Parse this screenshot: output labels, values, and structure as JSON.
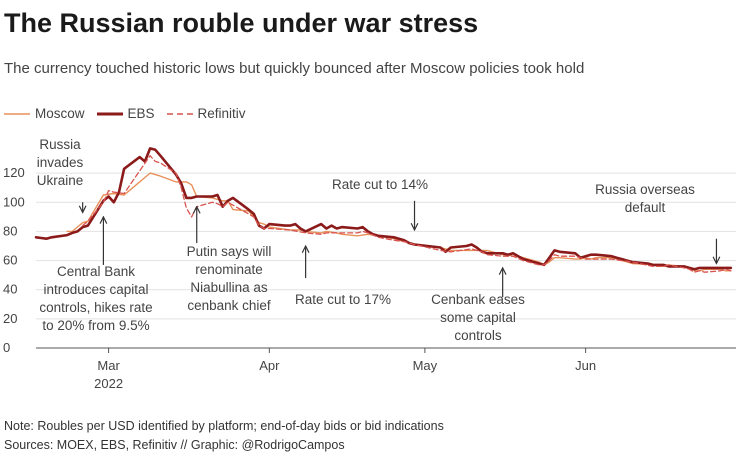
{
  "title": "The Russian rouble under war stress",
  "subtitle": "The currency touched historic lows but quickly bounced after Moscow policies took hold",
  "note": "Note: Roubles per USD identified by platform; end-of-day bids or bid indications",
  "sources": "Sources: MOEX, EBS, Refinitiv // Graphic: @RodrigoCampos",
  "colors": {
    "moscow": "#e8915a",
    "ebs": "#8b1a1a",
    "refinitiv": "#d9534f"
  },
  "chart_data": {
    "type": "line",
    "title": "The Russian rouble under war stress",
    "ylim": [
      0,
      140
    ],
    "yticks": [
      0,
      20,
      40,
      60,
      80,
      100,
      120
    ],
    "xlim": [
      "2022-02-15",
      "2022-06-30"
    ],
    "xticks": [
      {
        "date": "2022-03-01",
        "label": "Mar",
        "sublabel": "2022"
      },
      {
        "date": "2022-04-01",
        "label": "Apr",
        "sublabel": ""
      },
      {
        "date": "2022-05-01",
        "label": "May",
        "sublabel": ""
      },
      {
        "date": "2022-06-01",
        "label": "Jun",
        "sublabel": ""
      }
    ],
    "legend": "top-left",
    "series": [
      {
        "name": "Moscow",
        "style": "thin-solid",
        "points": [
          [
            "2022-02-21",
            80
          ],
          [
            "2022-02-22",
            80
          ],
          [
            "2022-02-24",
            86
          ],
          [
            "2022-02-25",
            87
          ],
          [
            "2022-02-28",
            105
          ],
          [
            "2022-03-02",
            106
          ],
          [
            "2022-03-04",
            105
          ],
          [
            "2022-03-09",
            120
          ],
          [
            "2022-03-10",
            119
          ],
          [
            "2022-03-11",
            118
          ],
          [
            "2022-03-14",
            114
          ],
          [
            "2022-03-16",
            114
          ],
          [
            "2022-03-17",
            112
          ],
          [
            "2022-03-18",
            104
          ],
          [
            "2022-03-21",
            103
          ],
          [
            "2022-03-22",
            102
          ],
          [
            "2022-03-23",
            101
          ],
          [
            "2022-03-24",
            101
          ],
          [
            "2022-03-25",
            95
          ],
          [
            "2022-03-28",
            94
          ],
          [
            "2022-03-29",
            90
          ],
          [
            "2022-03-30",
            86
          ],
          [
            "2022-03-31",
            85
          ],
          [
            "2022-04-01",
            83
          ],
          [
            "2022-04-05",
            81
          ],
          [
            "2022-04-07",
            81
          ],
          [
            "2022-04-08",
            80
          ],
          [
            "2022-04-11",
            79
          ],
          [
            "2022-04-12",
            80
          ],
          [
            "2022-04-14",
            79
          ],
          [
            "2022-04-15",
            78
          ],
          [
            "2022-04-18",
            77
          ],
          [
            "2022-04-20",
            78
          ],
          [
            "2022-04-22",
            77
          ],
          [
            "2022-04-25",
            75
          ],
          [
            "2022-04-27",
            73
          ],
          [
            "2022-04-29",
            71
          ],
          [
            "2022-05-04",
            69
          ],
          [
            "2022-05-06",
            67
          ],
          [
            "2022-05-10",
            67
          ],
          [
            "2022-05-12",
            67
          ],
          [
            "2022-05-13",
            67
          ],
          [
            "2022-05-16",
            64
          ],
          [
            "2022-05-17",
            64
          ],
          [
            "2022-05-18",
            63
          ],
          [
            "2022-05-19",
            63
          ],
          [
            "2022-05-20",
            62
          ],
          [
            "2022-05-23",
            59
          ],
          [
            "2022-05-24",
            57
          ],
          [
            "2022-05-25",
            59
          ],
          [
            "2022-05-26",
            62
          ],
          [
            "2022-05-27",
            62
          ],
          [
            "2022-05-30",
            61
          ],
          [
            "2022-05-31",
            61
          ],
          [
            "2022-06-01",
            62
          ],
          [
            "2022-06-02",
            61
          ],
          [
            "2022-06-03",
            62
          ],
          [
            "2022-06-06",
            62
          ],
          [
            "2022-06-07",
            61
          ],
          [
            "2022-06-08",
            60
          ],
          [
            "2022-06-09",
            59
          ],
          [
            "2022-06-10",
            58
          ],
          [
            "2022-06-14",
            57
          ],
          [
            "2022-06-15",
            57
          ],
          [
            "2022-06-16",
            56
          ],
          [
            "2022-06-17",
            57
          ],
          [
            "2022-06-20",
            56
          ],
          [
            "2022-06-21",
            55
          ],
          [
            "2022-06-22",
            53
          ],
          [
            "2022-06-23",
            53
          ],
          [
            "2022-06-24",
            54
          ],
          [
            "2022-06-27",
            54
          ],
          [
            "2022-06-28",
            53
          ],
          [
            "2022-06-29",
            53
          ]
        ]
      },
      {
        "name": "EBS",
        "style": "thick-solid",
        "points": [
          [
            "2022-02-15",
            76
          ],
          [
            "2022-02-16",
            75.5
          ],
          [
            "2022-02-17",
            75
          ],
          [
            "2022-02-18",
            76
          ],
          [
            "2022-02-21",
            77.5
          ],
          [
            "2022-02-22",
            79
          ],
          [
            "2022-02-23",
            80
          ],
          [
            "2022-02-24",
            83
          ],
          [
            "2022-02-25",
            84
          ],
          [
            "2022-02-28",
            101
          ],
          [
            "2022-03-01",
            104
          ],
          [
            "2022-03-02",
            100
          ],
          [
            "2022-03-03",
            107
          ],
          [
            "2022-03-04",
            123
          ],
          [
            "2022-03-07",
            131
          ],
          [
            "2022-03-08",
            128
          ],
          [
            "2022-03-09",
            137
          ],
          [
            "2022-03-10",
            136
          ],
          [
            "2022-03-11",
            132
          ],
          [
            "2022-03-14",
            119
          ],
          [
            "2022-03-15",
            113
          ],
          [
            "2022-03-16",
            103
          ],
          [
            "2022-03-17",
            103
          ],
          [
            "2022-03-18",
            104
          ],
          [
            "2022-03-21",
            104
          ],
          [
            "2022-03-22",
            105
          ],
          [
            "2022-03-23",
            97
          ],
          [
            "2022-03-24",
            101
          ],
          [
            "2022-03-25",
            103
          ],
          [
            "2022-03-28",
            95
          ],
          [
            "2022-03-29",
            92
          ],
          [
            "2022-03-30",
            84
          ],
          [
            "2022-03-31",
            82
          ],
          [
            "2022-04-01",
            85
          ],
          [
            "2022-04-04",
            84
          ],
          [
            "2022-04-05",
            84
          ],
          [
            "2022-04-06",
            85
          ],
          [
            "2022-04-07",
            82
          ],
          [
            "2022-04-08",
            80
          ],
          [
            "2022-04-11",
            85
          ],
          [
            "2022-04-12",
            82
          ],
          [
            "2022-04-13",
            84
          ],
          [
            "2022-04-14",
            82
          ],
          [
            "2022-04-15",
            83
          ],
          [
            "2022-04-18",
            82
          ],
          [
            "2022-04-19",
            83
          ],
          [
            "2022-04-20",
            80
          ],
          [
            "2022-04-21",
            78
          ],
          [
            "2022-04-22",
            77
          ],
          [
            "2022-04-25",
            76
          ],
          [
            "2022-04-26",
            75
          ],
          [
            "2022-04-27",
            74
          ],
          [
            "2022-04-28",
            72
          ],
          [
            "2022-04-29",
            71
          ],
          [
            "2022-05-04",
            69
          ],
          [
            "2022-05-05",
            66
          ],
          [
            "2022-05-06",
            69
          ],
          [
            "2022-05-09",
            70
          ],
          [
            "2022-05-10",
            71
          ],
          [
            "2022-05-11",
            69
          ],
          [
            "2022-05-12",
            66
          ],
          [
            "2022-05-13",
            65
          ],
          [
            "2022-05-16",
            65
          ],
          [
            "2022-05-17",
            64
          ],
          [
            "2022-05-18",
            65
          ],
          [
            "2022-05-19",
            63
          ],
          [
            "2022-05-20",
            61
          ],
          [
            "2022-05-23",
            58
          ],
          [
            "2022-05-24",
            57
          ],
          [
            "2022-05-25",
            62
          ],
          [
            "2022-05-26",
            67
          ],
          [
            "2022-05-27",
            66
          ],
          [
            "2022-05-30",
            65
          ],
          [
            "2022-05-31",
            62
          ],
          [
            "2022-06-01",
            63
          ],
          [
            "2022-06-02",
            64
          ],
          [
            "2022-06-03",
            64
          ],
          [
            "2022-06-06",
            63
          ],
          [
            "2022-06-07",
            62
          ],
          [
            "2022-06-08",
            61
          ],
          [
            "2022-06-09",
            60
          ],
          [
            "2022-06-10",
            59
          ],
          [
            "2022-06-13",
            58
          ],
          [
            "2022-06-14",
            57
          ],
          [
            "2022-06-15",
            57
          ],
          [
            "2022-06-16",
            57
          ],
          [
            "2022-06-17",
            56
          ],
          [
            "2022-06-20",
            56
          ],
          [
            "2022-06-21",
            55
          ],
          [
            "2022-06-22",
            54
          ],
          [
            "2022-06-23",
            55
          ],
          [
            "2022-06-24",
            55
          ],
          [
            "2022-06-27",
            55
          ],
          [
            "2022-06-28",
            55
          ],
          [
            "2022-06-29",
            55
          ]
        ]
      },
      {
        "name": "Refinitiv",
        "style": "dashed",
        "points": [
          [
            "2022-02-24",
            84
          ],
          [
            "2022-02-25",
            87
          ],
          [
            "2022-02-28",
            100
          ],
          [
            "2022-03-01",
            108
          ],
          [
            "2022-03-02",
            107
          ],
          [
            "2022-03-04",
            106
          ],
          [
            "2022-03-09",
            132
          ],
          [
            "2022-03-10",
            128
          ],
          [
            "2022-03-11",
            127
          ],
          [
            "2022-03-14",
            120
          ],
          [
            "2022-03-15",
            110
          ],
          [
            "2022-03-16",
            96
          ],
          [
            "2022-03-17",
            90
          ],
          [
            "2022-03-18",
            97
          ],
          [
            "2022-03-21",
            100
          ],
          [
            "2022-03-22",
            99
          ],
          [
            "2022-03-23",
            97
          ],
          [
            "2022-03-24",
            100
          ],
          [
            "2022-03-25",
            98
          ],
          [
            "2022-03-28",
            92
          ],
          [
            "2022-03-29",
            90
          ],
          [
            "2022-03-30",
            84
          ],
          [
            "2022-03-31",
            82
          ],
          [
            "2022-04-01",
            82
          ],
          [
            "2022-04-05",
            81
          ],
          [
            "2022-04-08",
            79
          ],
          [
            "2022-04-11",
            78
          ],
          [
            "2022-04-12",
            79
          ],
          [
            "2022-04-14",
            79
          ],
          [
            "2022-04-15",
            79
          ],
          [
            "2022-04-18",
            79
          ],
          [
            "2022-04-19",
            80
          ],
          [
            "2022-04-20",
            79
          ],
          [
            "2022-04-22",
            76
          ],
          [
            "2022-04-25",
            74
          ],
          [
            "2022-04-27",
            73
          ],
          [
            "2022-04-29",
            71
          ],
          [
            "2022-05-04",
            67
          ],
          [
            "2022-05-06",
            66
          ],
          [
            "2022-05-10",
            68
          ],
          [
            "2022-05-12",
            66
          ],
          [
            "2022-05-13",
            64
          ],
          [
            "2022-05-16",
            63
          ],
          [
            "2022-05-18",
            63
          ],
          [
            "2022-05-20",
            60
          ],
          [
            "2022-05-23",
            57
          ],
          [
            "2022-05-24",
            57
          ],
          [
            "2022-05-25",
            60
          ],
          [
            "2022-05-26",
            64
          ],
          [
            "2022-05-27",
            63
          ],
          [
            "2022-05-30",
            63
          ],
          [
            "2022-05-31",
            62
          ],
          [
            "2022-06-01",
            61
          ],
          [
            "2022-06-03",
            61
          ],
          [
            "2022-06-06",
            61
          ],
          [
            "2022-06-08",
            60
          ],
          [
            "2022-06-10",
            59
          ],
          [
            "2022-06-14",
            56
          ],
          [
            "2022-06-16",
            56
          ],
          [
            "2022-06-17",
            57
          ],
          [
            "2022-06-20",
            55
          ],
          [
            "2022-06-21",
            54
          ],
          [
            "2022-06-22",
            52
          ],
          [
            "2022-06-23",
            53
          ],
          [
            "2022-06-24",
            52
          ],
          [
            "2022-06-27",
            53
          ],
          [
            "2022-06-28",
            54
          ],
          [
            "2022-06-29",
            53
          ]
        ]
      }
    ],
    "annotations": [
      {
        "lines": [
          "Russia",
          "invades",
          "Ukraine"
        ],
        "arrow_date": "2022-02-24",
        "arrow_dir": "down",
        "arrow_from": 100,
        "arrow_to": 93
      },
      {
        "lines": [
          "Central Bank",
          "introduces capital",
          "controls, hikes rate",
          "to 20% from 9.5%"
        ],
        "arrow_date": "2022-02-28",
        "arrow_dir": "up",
        "arrow_from": 57,
        "arrow_to": 90
      },
      {
        "lines": [
          "Putin says will",
          "renominate",
          "Niabullina as",
          "cenbank chief"
        ],
        "arrow_date": "2022-03-18",
        "arrow_dir": "up",
        "arrow_from": 72,
        "arrow_to": 97
      },
      {
        "lines": [
          "Rate cut to 17%"
        ],
        "arrow_date": "2022-04-08",
        "arrow_dir": "up",
        "arrow_from": 48,
        "arrow_to": 70
      },
      {
        "lines": [
          "Rate cut to 14%"
        ],
        "arrow_date": "2022-04-29",
        "arrow_dir": "down",
        "arrow_from": 101,
        "arrow_to": 81
      },
      {
        "lines": [
          "Cenbank eases",
          "some capital",
          "controls"
        ],
        "arrow_date": "2022-05-16",
        "arrow_dir": "up",
        "arrow_from": 35,
        "arrow_to": 55
      },
      {
        "lines": [
          "Russia overseas",
          "default"
        ],
        "arrow_date": "2022-06-27",
        "arrow_dir": "down",
        "arrow_from": 75,
        "arrow_to": 58
      }
    ]
  }
}
